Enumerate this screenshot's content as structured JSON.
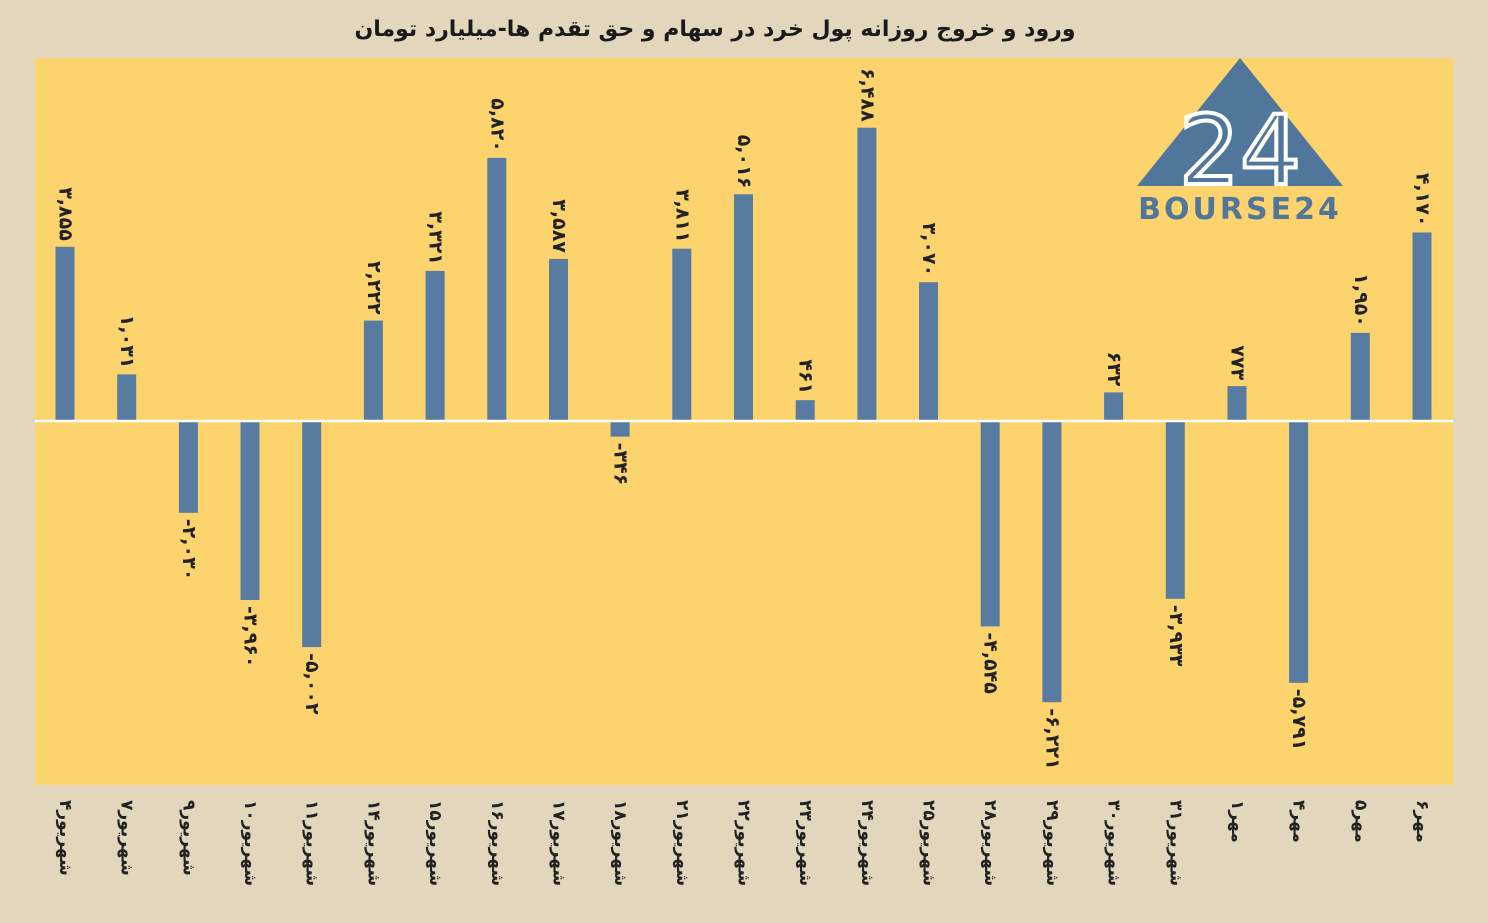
{
  "chart_data": {
    "type": "bar",
    "title": "ورود و خروج روزانه پول خرد در سهام و حق تقدم ها-میلیارد تومان",
    "categories": [
      "۴شهریور",
      "۷شهریور",
      "۹شهریور",
      "۱۰شهریور",
      "۱۱شهریور",
      "۱۴شهریور",
      "۱۵شهریور",
      "۱۶شهریور",
      "۱۷شهریور",
      "۱۸شهریور",
      "۲۱شهریور",
      "۲۲شهریور",
      "۲۳شهریور",
      "۲۴شهریور",
      "۲۵شهریور",
      "۲۸شهریور",
      "۲۹شهریور",
      "۳۰شهریور",
      "۳۱شهریور",
      "۱مهر",
      "۴مهر",
      "۵مهر",
      "۶مهر"
    ],
    "values": [
      3855,
      1031,
      -2030,
      -3960,
      -5002,
      2222,
      3321,
      5820,
      3587,
      -346,
      3811,
      5016,
      461,
      6488,
      3070,
      -4545,
      -6221,
      632,
      -3933,
      773,
      -5791,
      1950,
      4170
    ],
    "value_labels": [
      "۳,۸۵۵",
      "۱,۰۳۱",
      "-۲,۰۳۰",
      "-۳,۹۶۰",
      "-۵,۰۰۲",
      "۲,۲۲۲",
      "۳,۳۲۱",
      "۵,۸۲۰",
      "۳,۵۸۷",
      "-۳۴۶",
      "۳,۸۱۱",
      "۵,۰۱۶",
      "۴۶۱",
      "۶,۴۸۸",
      "۳,۰۷۰",
      "-۴,۵۴۵",
      "-۶,۲۲۱",
      "۶۳۲",
      "-۳,۹۳۳",
      "۷۷۳",
      "-۵,۷۹۱",
      "۱,۹۵۰",
      "۴,۱۷۰"
    ],
    "ylim": [
      -8000,
      8000
    ],
    "xlabel": "",
    "ylabel": "",
    "grid": false,
    "legend": "none"
  },
  "logo": {
    "mark": "24",
    "text": "BOURSE24"
  },
  "colors": {
    "page_background": "#e2d6bc",
    "plot_background": "#fcd36c",
    "bar": "#577ba1",
    "zero_line": "#ffffff",
    "logo": "#51769c",
    "text": "#222222"
  }
}
